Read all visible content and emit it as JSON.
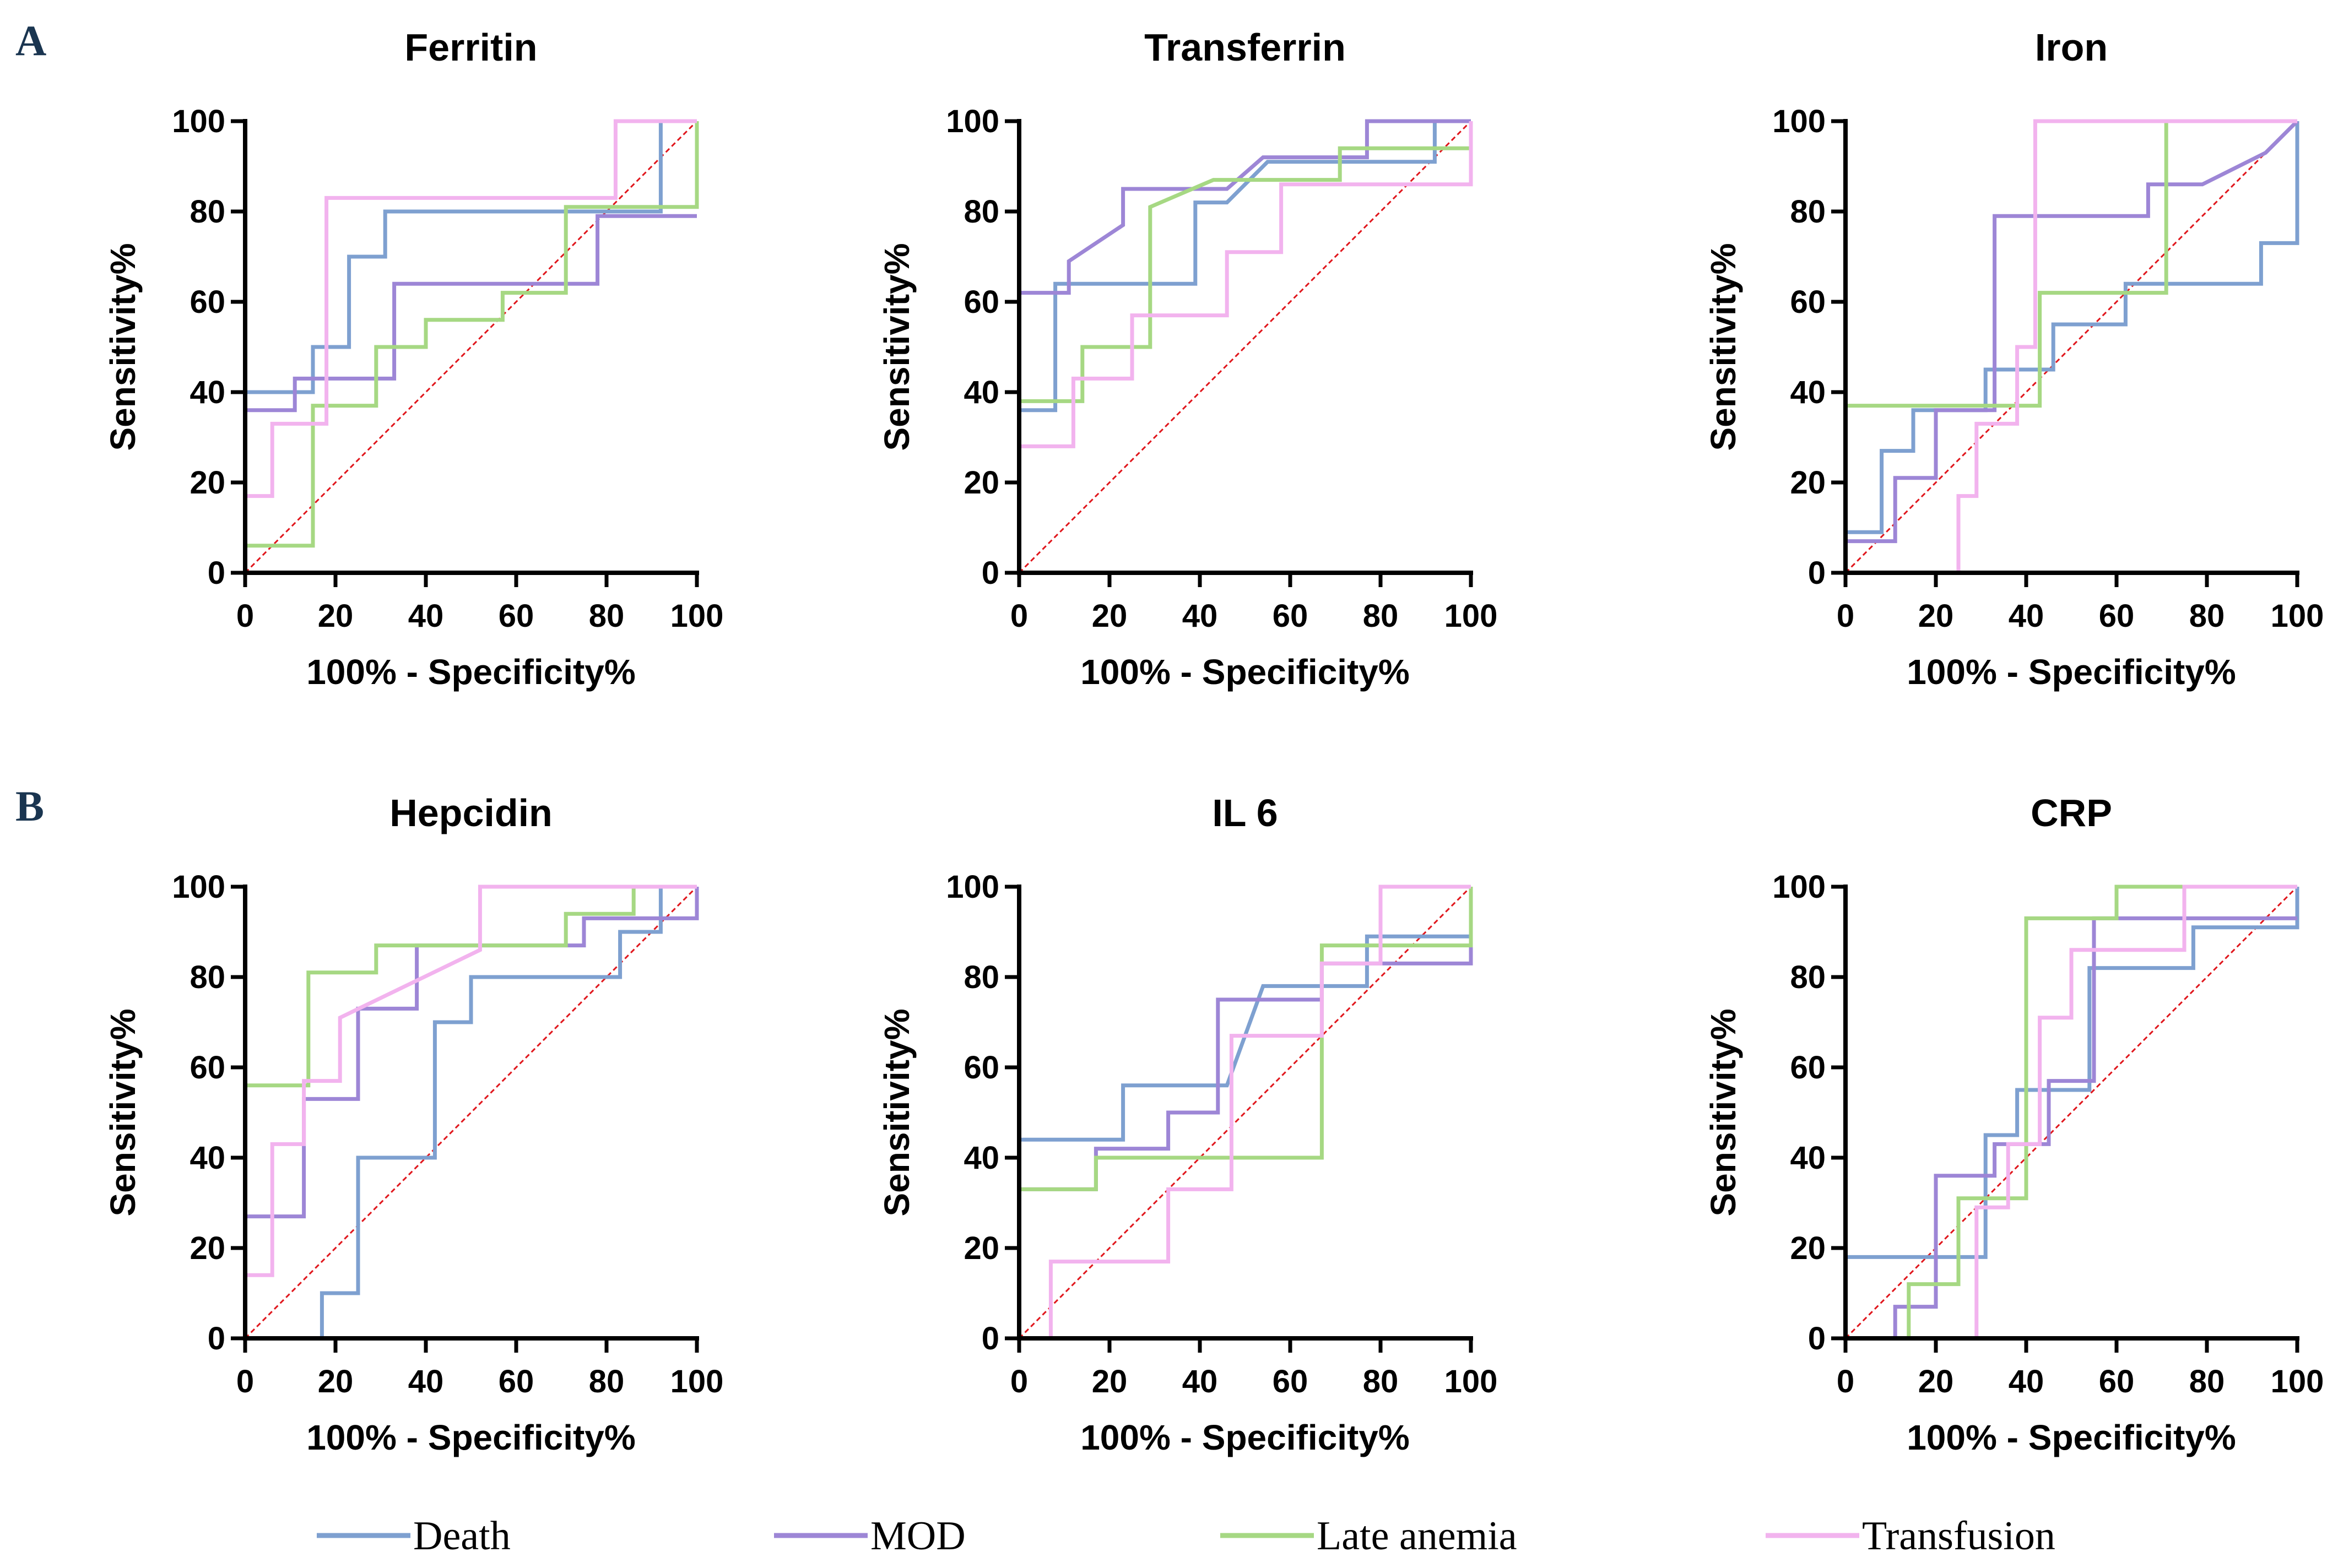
{
  "panel_labels": [
    "A",
    "B"
  ],
  "colors": {
    "Death": "#7ea0d0",
    "MOD": "#9d86d6",
    "Late anemia": "#a6d883",
    "Transfusion": "#f2b3ee",
    "reference": "#e0161c",
    "axis": "#000000"
  },
  "legend": [
    "Death",
    "MOD",
    "Late anemia",
    "Transfusion"
  ],
  "chart_data": [
    {
      "type": "line",
      "title": "Ferritin",
      "xlabel": "100% - Specificity%",
      "ylabel": "Sensitivity%",
      "xlim": [
        0,
        100
      ],
      "ylim": [
        0,
        100
      ],
      "xticks": [
        "0",
        "20",
        "40",
        "60",
        "80",
        "100"
      ],
      "yticks": [
        "0",
        "20",
        "40",
        "60",
        "80",
        "100"
      ],
      "series": [
        {
          "name": "Death",
          "x": [
            0,
            0,
            15,
            15,
            23,
            23,
            31,
            31,
            92,
            92,
            100,
            100
          ],
          "y": [
            0,
            40,
            40,
            50,
            50,
            70,
            70,
            80,
            80,
            100,
            100,
            100
          ]
        },
        {
          "name": "MOD",
          "x": [
            0,
            0,
            11,
            11,
            33,
            33,
            78,
            78,
            100,
            100
          ],
          "y": [
            0,
            36,
            36,
            43,
            43,
            64,
            64,
            79,
            79,
            79
          ]
        },
        {
          "name": "Late anemia",
          "x": [
            0,
            0,
            15,
            15,
            29,
            29,
            40,
            40,
            57,
            57,
            71,
            71,
            100,
            100
          ],
          "y": [
            0,
            6,
            6,
            37,
            37,
            50,
            50,
            56,
            56,
            62,
            62,
            81,
            81,
            100
          ]
        },
        {
          "name": "Transfusion",
          "x": [
            0,
            0,
            6,
            6,
            18,
            18,
            82,
            82,
            100,
            100
          ],
          "y": [
            0,
            17,
            17,
            33,
            33,
            83,
            83,
            100,
            100,
            100
          ]
        }
      ]
    },
    {
      "type": "line",
      "title": "Transferrin",
      "xlabel": "100% - Specificity%",
      "ylabel": "Sensitivity%",
      "xlim": [
        0,
        100
      ],
      "ylim": [
        0,
        100
      ],
      "xticks": [
        "0",
        "20",
        "40",
        "60",
        "80",
        "100"
      ],
      "yticks": [
        "0",
        "20",
        "40",
        "60",
        "80",
        "100"
      ],
      "series": [
        {
          "name": "Death",
          "x": [
            0,
            0,
            8,
            8,
            39,
            39,
            46,
            55,
            92,
            92,
            100,
            100
          ],
          "y": [
            0,
            36,
            36,
            64,
            64,
            82,
            82,
            91,
            91,
            100,
            100,
            100
          ]
        },
        {
          "name": "MOD",
          "x": [
            0,
            0,
            11,
            11,
            23,
            23,
            46,
            54,
            77,
            77,
            100,
            100
          ],
          "y": [
            0,
            62,
            62,
            69,
            77,
            85,
            85,
            92,
            92,
            100,
            100,
            100
          ]
        },
        {
          "name": "Late anemia",
          "x": [
            0,
            0,
            14,
            14,
            29,
            29,
            43,
            43,
            71,
            71,
            100,
            100
          ],
          "y": [
            0,
            38,
            38,
            50,
            50,
            81,
            87,
            87,
            87,
            94,
            94,
            100
          ]
        },
        {
          "name": "Transfusion",
          "x": [
            0,
            0,
            12,
            12,
            25,
            25,
            29,
            29,
            46,
            46,
            58,
            58,
            100,
            100
          ],
          "y": [
            0,
            28,
            28,
            43,
            43,
            57,
            57,
            57,
            57,
            71,
            71,
            86,
            86,
            100
          ]
        }
      ]
    },
    {
      "type": "line",
      "title": "Iron",
      "xlabel": "100% - Specificity%",
      "ylabel": "Sensitivity%",
      "xlim": [
        0,
        100
      ],
      "ylim": [
        0,
        100
      ],
      "xticks": [
        "0",
        "20",
        "40",
        "60",
        "80",
        "100"
      ],
      "yticks": [
        "0",
        "20",
        "40",
        "60",
        "80",
        "100"
      ],
      "series": [
        {
          "name": "Death",
          "x": [
            0,
            0,
            8,
            8,
            15,
            15,
            31,
            31,
            38,
            38,
            46,
            46,
            54,
            54,
            62,
            62,
            92,
            92,
            100,
            100
          ],
          "y": [
            0,
            9,
            9,
            27,
            27,
            36,
            36,
            45,
            45,
            45,
            45,
            55,
            55,
            55,
            55,
            64,
            64,
            73,
            73,
            100
          ]
        },
        {
          "name": "MOD",
          "x": [
            0,
            0,
            11,
            11,
            20,
            20,
            33,
            33,
            67,
            67,
            79,
            93,
            100
          ],
          "y": [
            0,
            7,
            7,
            21,
            21,
            36,
            36,
            79,
            79,
            86,
            86,
            93,
            100
          ]
        },
        {
          "name": "Late anemia",
          "x": [
            0,
            0,
            43,
            43,
            71,
            71,
            100
          ],
          "y": [
            0,
            37,
            37,
            62,
            62,
            100,
            100
          ]
        },
        {
          "name": "Transfusion",
          "x": [
            0,
            25,
            25,
            29,
            29,
            33,
            33,
            38,
            38,
            42,
            42,
            43,
            43,
            100
          ],
          "y": [
            0,
            0,
            17,
            17,
            33,
            33,
            33,
            33,
            50,
            50,
            100,
            100,
            100,
            100
          ]
        }
      ]
    },
    {
      "type": "line",
      "title": "Hepcidin",
      "xlabel": "100% - Specificity%",
      "ylabel": "Sensitivity%",
      "xlim": [
        0,
        100
      ],
      "ylim": [
        0,
        100
      ],
      "xticks": [
        "0",
        "20",
        "40",
        "60",
        "80",
        "100"
      ],
      "yticks": [
        "0",
        "20",
        "40",
        "60",
        "80",
        "100"
      ],
      "series": [
        {
          "name": "Death",
          "x": [
            0,
            0,
            17,
            17,
            25,
            25,
            42,
            42,
            50,
            50,
            83,
            83,
            92,
            92,
            100,
            100
          ],
          "y": [
            0,
            0,
            0,
            10,
            10,
            40,
            40,
            70,
            70,
            80,
            80,
            90,
            90,
            100,
            100,
            100
          ]
        },
        {
          "name": "MOD",
          "x": [
            0,
            0,
            13,
            13,
            25,
            25,
            38,
            38,
            75,
            75,
            92,
            92,
            100,
            100
          ],
          "y": [
            0,
            27,
            27,
            53,
            53,
            73,
            73,
            87,
            87,
            93,
            93,
            93,
            93,
            100
          ]
        },
        {
          "name": "Late anemia",
          "x": [
            0,
            0,
            14,
            14,
            29,
            29,
            71,
            71,
            86,
            86,
            100,
            100
          ],
          "y": [
            0,
            56,
            56,
            81,
            81,
            87,
            87,
            94,
            94,
            100,
            100,
            100
          ]
        },
        {
          "name": "Transfusion",
          "x": [
            0,
            0,
            6,
            6,
            13,
            13,
            21,
            21,
            52,
            52,
            100,
            100
          ],
          "y": [
            0,
            14,
            14,
            43,
            43,
            57,
            57,
            71,
            86,
            100,
            100,
            100
          ]
        }
      ]
    },
    {
      "type": "line",
      "title": "IL 6",
      "xlabel": "100% - Specificity%",
      "ylabel": "Sensitivity%",
      "xlim": [
        0,
        100
      ],
      "ylim": [
        0,
        100
      ],
      "xticks": [
        "0",
        "20",
        "40",
        "60",
        "80",
        "100"
      ],
      "yticks": [
        "0",
        "20",
        "40",
        "60",
        "80",
        "100"
      ],
      "series": [
        {
          "name": "Death",
          "x": [
            0,
            0,
            23,
            23,
            46,
            54,
            77,
            77,
            100,
            100
          ],
          "y": [
            0,
            44,
            44,
            56,
            56,
            78,
            78,
            89,
            89,
            100
          ]
        },
        {
          "name": "MOD",
          "x": [
            0,
            0,
            17,
            17,
            33,
            33,
            44,
            44,
            58,
            58,
            67,
            67,
            100,
            100
          ],
          "y": [
            0,
            33,
            33,
            42,
            42,
            50,
            50,
            75,
            75,
            75,
            75,
            83,
            83,
            100
          ]
        },
        {
          "name": "Late anemia",
          "x": [
            0,
            0,
            17,
            17,
            67,
            67,
            100,
            100
          ],
          "y": [
            0,
            33,
            33,
            40,
            40,
            87,
            87,
            100
          ]
        },
        {
          "name": "Transfusion",
          "x": [
            0,
            7,
            7,
            33,
            33,
            40,
            40,
            47,
            47,
            67,
            67,
            80,
            80,
            100,
            100
          ],
          "y": [
            0,
            0,
            17,
            17,
            33,
            33,
            33,
            33,
            67,
            67,
            83,
            83,
            100,
            100,
            100
          ]
        }
      ]
    },
    {
      "type": "line",
      "title": "CRP",
      "xlabel": "100% - Specificity%",
      "ylabel": "Sensitivity%",
      "xlim": [
        0,
        100
      ],
      "ylim": [
        0,
        100
      ],
      "xticks": [
        "0",
        "20",
        "40",
        "60",
        "80",
        "100"
      ],
      "yticks": [
        "0",
        "20",
        "40",
        "60",
        "80",
        "100"
      ],
      "series": [
        {
          "name": "Death",
          "x": [
            0,
            0,
            31,
            31,
            38,
            38,
            54,
            54,
            77,
            77,
            100,
            100
          ],
          "y": [
            0,
            18,
            18,
            45,
            45,
            55,
            55,
            82,
            82,
            91,
            91,
            100
          ]
        },
        {
          "name": "MOD",
          "x": [
            0,
            11,
            11,
            20,
            20,
            33,
            33,
            45,
            45,
            55,
            55,
            92,
            100
          ],
          "y": [
            0,
            0,
            7,
            7,
            36,
            36,
            43,
            43,
            57,
            57,
            93,
            93,
            93
          ]
        },
        {
          "name": "Late anemia",
          "x": [
            0,
            14,
            14,
            25,
            25,
            31,
            31,
            40,
            40,
            44,
            44,
            60,
            60,
            100
          ],
          "y": [
            0,
            0,
            12,
            12,
            31,
            31,
            31,
            31,
            93,
            93,
            93,
            93,
            100,
            100
          ]
        },
        {
          "name": "Transfusion",
          "x": [
            0,
            29,
            29,
            36,
            36,
            43,
            43,
            50,
            50,
            75,
            75,
            100,
            100
          ],
          "y": [
            0,
            0,
            29,
            29,
            43,
            43,
            71,
            71,
            86,
            86,
            100,
            100,
            100
          ]
        }
      ]
    }
  ]
}
